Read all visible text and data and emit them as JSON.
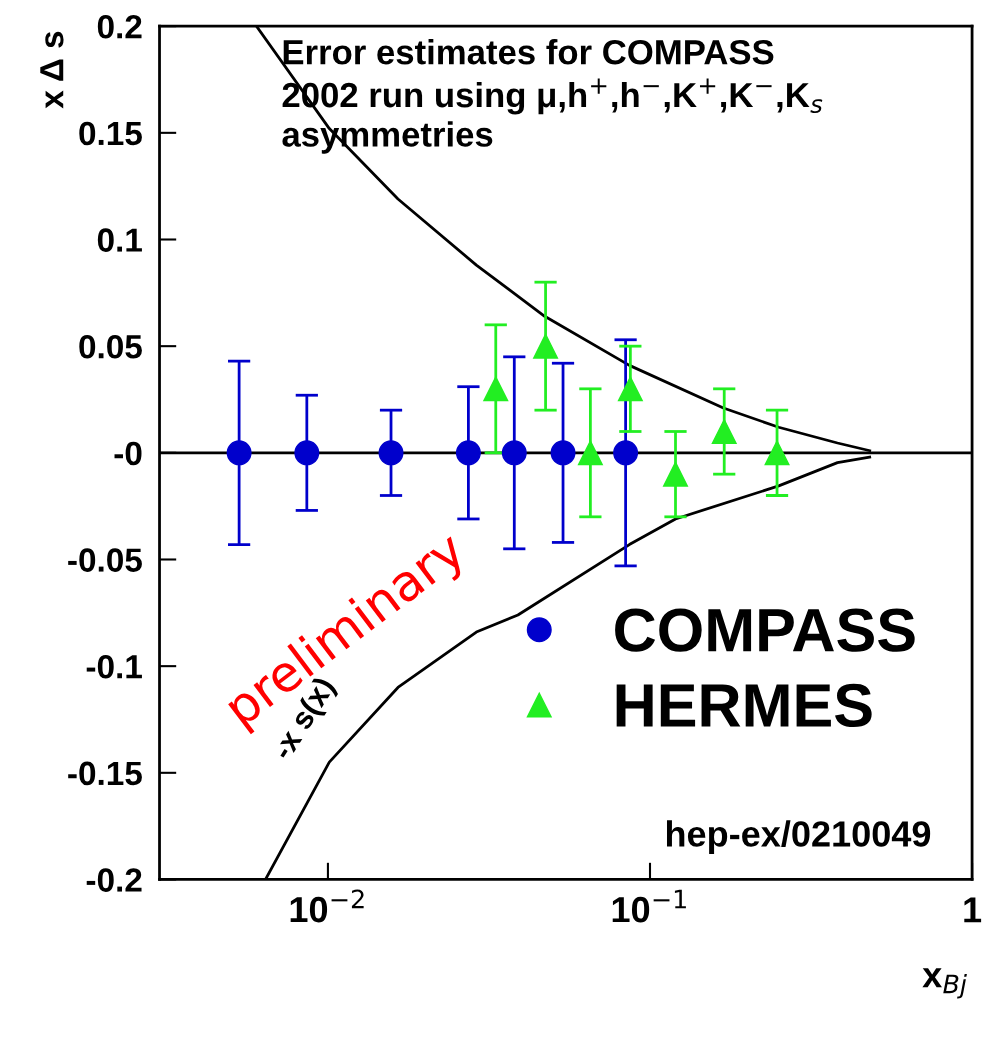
{
  "chart_data": {
    "type": "scatter",
    "xlabel": "x$_{Bj}$",
    "ylabel": "x Δ s",
    "log": "x",
    "xlim": [
      0.003,
      1
    ],
    "ylim": [
      -0.2,
      0.2
    ],
    "xticks": [
      {
        "value": 0.01,
        "label": "10$^{−2}$"
      },
      {
        "value": 0.1,
        "label": "10$^{−1}$"
      },
      1
    ],
    "yticks": [
      -0.2,
      -0.15,
      -0.1,
      -0.05,
      {
        "value": 0,
        "label": "-0"
      },
      0.05,
      0.1,
      0.15,
      0.2
    ],
    "grid": false,
    "legend": "bottom right",
    "ref_lines": [
      {
        "axis": "y",
        "value": 0,
        "color": "#000000"
      }
    ],
    "series": [
      {
        "name": "COMPASS",
        "marker": "circle",
        "color": "#0000cc",
        "x": [
          0.0053,
          0.0086,
          0.0157,
          0.0273,
          0.0379,
          0.0537,
          0.084
        ],
        "values": [
          0,
          0,
          0,
          0,
          0,
          0,
          0
        ],
        "errors": [
          0.043,
          0.027,
          0.02,
          0.031,
          0.045,
          0.042,
          0.053
        ]
      },
      {
        "name": "HERMES",
        "marker": "triangle",
        "color": "#22ee22",
        "x": [
          0.0332,
          0.0474,
          0.0653,
          0.0869,
          0.12,
          0.17,
          0.248
        ],
        "values": [
          0.03,
          0.05,
          0,
          0.03,
          -0.01,
          0.01,
          0
        ],
        "errors": [
          0.03,
          0.03,
          0.03,
          0.02,
          0.02,
          0.02,
          0.02
        ]
      },
      {
        "type": "line",
        "color": "#000000",
        "marker": "none",
        "x": [
          0.006,
          0.0101,
          0.0165,
          0.0289,
          0.0471,
          0.0863,
          0.169,
          0.251,
          0.382,
          0.481
        ],
        "values": [
          0.2,
          0.152,
          0.119,
          0.088,
          0.064,
          0.041,
          0.021,
          0.012,
          0.0046,
          0.001
        ]
      },
      {
        "name": "-x s(x)",
        "type": "line",
        "color": "#000000",
        "marker": "none",
        "x": [
          0.0064,
          0.0101,
          0.0165,
          0.0289,
          0.0389,
          0.0863,
          0.12,
          0.251,
          0.382,
          0.481
        ],
        "values": [
          -0.2,
          -0.145,
          -0.11,
          -0.084,
          -0.076,
          -0.043,
          -0.031,
          -0.0155,
          -0.0046,
          -0.002
        ]
      }
    ],
    "annotations": [
      "Error estimates for COMPASS\n2002 run using μ,h$^{+}$,h$^{−}$,K$^{+}$,K$^{−}$,K$_{s}$\nasymmetries",
      "preliminary",
      "hep-ex/0210049"
    ]
  }
}
